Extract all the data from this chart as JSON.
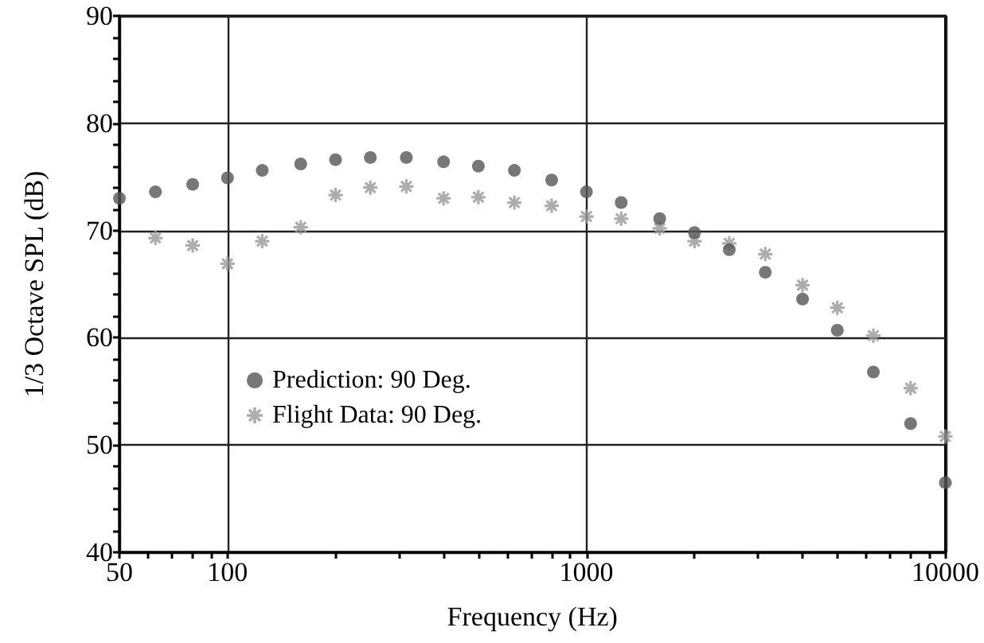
{
  "chart_data": {
    "type": "scatter",
    "xlabel": "Frequency (Hz)",
    "ylabel": "1/3 Octave SPL (dB)",
    "log": "x",
    "xlim": [
      50,
      10000
    ],
    "ylim": [
      40,
      90
    ],
    "xticks": [
      50,
      {
        "value": 60,
        "label": null
      },
      {
        "value": 70,
        "label": null
      },
      {
        "value": 80,
        "label": null
      },
      {
        "value": 90,
        "label": null
      },
      100,
      {
        "value": 200,
        "label": null
      },
      {
        "value": 300,
        "label": null
      },
      {
        "value": 400,
        "label": null
      },
      {
        "value": 500,
        "label": null
      },
      {
        "value": 600,
        "label": null
      },
      {
        "value": 700,
        "label": null
      },
      {
        "value": 800,
        "label": null
      },
      {
        "value": 900,
        "label": null
      },
      1000,
      {
        "value": 2000,
        "label": null
      },
      {
        "value": 3000,
        "label": null
      },
      {
        "value": 4000,
        "label": null
      },
      {
        "value": 5000,
        "label": null
      },
      {
        "value": 6000,
        "label": null
      },
      {
        "value": 7000,
        "label": null
      },
      {
        "value": 8000,
        "label": null
      },
      {
        "value": 9000,
        "label": null
      },
      10000
    ],
    "yticks": [
      40,
      {
        "value": 42,
        "label": null
      },
      {
        "value": 44,
        "label": null
      },
      {
        "value": 46,
        "label": null
      },
      {
        "value": 48,
        "label": null
      },
      50,
      {
        "value": 52,
        "label": null
      },
      {
        "value": 54,
        "label": null
      },
      {
        "value": 56,
        "label": null
      },
      {
        "value": 58,
        "label": null
      },
      60,
      {
        "value": 62,
        "label": null
      },
      {
        "value": 64,
        "label": null
      },
      {
        "value": 66,
        "label": null
      },
      {
        "value": 68,
        "label": null
      },
      70,
      {
        "value": 72,
        "label": null
      },
      {
        "value": 74,
        "label": null
      },
      {
        "value": 76,
        "label": null
      },
      {
        "value": 78,
        "label": null
      },
      80,
      {
        "value": 82,
        "label": null
      },
      {
        "value": 84,
        "label": null
      },
      {
        "value": 86,
        "label": null
      },
      {
        "value": 88,
        "label": null
      },
      90
    ],
    "grid": true,
    "legend": "left",
    "series": [
      {
        "name": "Prediction: 90 Deg.",
        "color": "#555555",
        "marker": "circle",
        "x": [
          50,
          63,
          80,
          100,
          125,
          160,
          200,
          250,
          315,
          400,
          500,
          630,
          800,
          1000,
          1250,
          1600,
          2000,
          2500,
          3150,
          4000,
          5000,
          6300,
          8000,
          10000
        ],
        "values": [
          73.0,
          73.6,
          74.3,
          74.9,
          75.6,
          76.2,
          76.6,
          76.8,
          76.8,
          76.4,
          76.0,
          75.6,
          74.7,
          73.6,
          72.6,
          71.1,
          69.8,
          68.2,
          66.1,
          63.6,
          60.7,
          56.8,
          52.0,
          46.5
        ]
      },
      {
        "name": "Flight Data: 90 Deg.",
        "color": "#999999",
        "marker": "star",
        "x": [
          63,
          80,
          100,
          125,
          160,
          200,
          250,
          315,
          400,
          500,
          630,
          800,
          1000,
          1250,
          1600,
          2000,
          2500,
          3150,
          4000,
          5000,
          6300,
          8000,
          10000
        ],
        "values": [
          69.3,
          68.6,
          66.9,
          69.0,
          70.3,
          73.3,
          74.0,
          74.1,
          73.0,
          73.1,
          72.6,
          72.3,
          71.3,
          71.1,
          70.2,
          69.0,
          68.8,
          67.8,
          64.9,
          62.8,
          60.2,
          55.3,
          50.8
        ]
      }
    ]
  }
}
